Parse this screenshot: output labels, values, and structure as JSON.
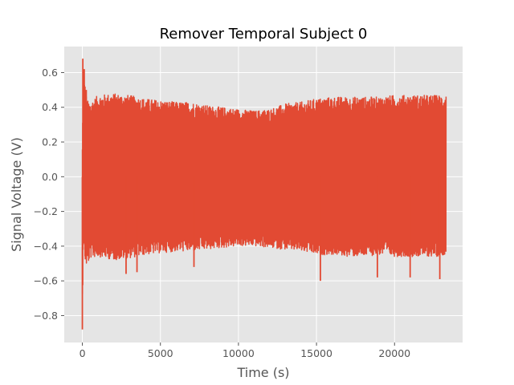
{
  "chart_data": {
    "type": "line",
    "title": "Remover Temporal Subject 0",
    "xlabel": "Time (s)",
    "ylabel": "Signal Voltage (V)",
    "xlim": [
      -1160,
      24360
    ],
    "ylim": [
      -0.955,
      0.75
    ],
    "x_ticks": [
      0,
      5000,
      10000,
      15000,
      20000
    ],
    "x_tick_labels": [
      "0",
      "5000",
      "10000",
      "15000",
      "20000"
    ],
    "y_ticks": [
      0.6,
      0.4,
      0.2,
      0.0,
      -0.2,
      -0.4,
      -0.6,
      -0.8
    ],
    "y_tick_labels": [
      "0.6",
      "0.4",
      "0.2",
      "0.0",
      "−0.2",
      "−0.4",
      "−0.6",
      "−0.8"
    ],
    "grid": true,
    "style": "ggplot",
    "background_color": "#E5E5E5",
    "grid_color": "#FFFFFF",
    "series": [
      {
        "color": "#E24A33",
        "x_start": 0,
        "x_end": 23300,
        "sampled_envelope": {
          "x": [
            0,
            60,
            120,
            200,
            300,
            500,
            1000,
            2000,
            3000,
            4000,
            5000,
            6000,
            7000,
            8000,
            9000,
            10000,
            11000,
            12000,
            13000,
            14000,
            15000,
            16000,
            17000,
            18000,
            19000,
            20000,
            21000,
            22000,
            23000,
            23300
          ],
          "max": [
            0.17,
            0.68,
            0.6,
            0.5,
            0.44,
            0.43,
            0.47,
            0.48,
            0.47,
            0.45,
            0.44,
            0.43,
            0.43,
            0.41,
            0.4,
            0.39,
            0.38,
            0.39,
            0.42,
            0.43,
            0.45,
            0.46,
            0.46,
            0.46,
            0.46,
            0.47,
            0.47,
            0.47,
            0.47,
            0.48
          ],
          "min": [
            -0.88,
            -0.35,
            -0.45,
            -0.5,
            -0.52,
            -0.47,
            -0.46,
            -0.48,
            -0.47,
            -0.45,
            -0.44,
            -0.43,
            -0.43,
            -0.42,
            -0.41,
            -0.4,
            -0.4,
            -0.41,
            -0.42,
            -0.43,
            -0.45,
            -0.45,
            -0.46,
            -0.46,
            -0.45,
            -0.46,
            -0.46,
            -0.46,
            -0.46,
            -0.44
          ]
        },
        "spikes": [
          {
            "x": 0,
            "y": -0.88
          },
          {
            "x": 30,
            "y": 0.68
          },
          {
            "x": 120,
            "y": 0.62
          },
          {
            "x": 250,
            "y": 0.5
          },
          {
            "x": 2800,
            "y": -0.56
          },
          {
            "x": 3500,
            "y": -0.55
          },
          {
            "x": 7150,
            "y": -0.52
          },
          {
            "x": 15250,
            "y": -0.6
          },
          {
            "x": 18900,
            "y": -0.58
          },
          {
            "x": 21000,
            "y": -0.58
          },
          {
            "x": 22900,
            "y": -0.59
          }
        ]
      }
    ]
  }
}
